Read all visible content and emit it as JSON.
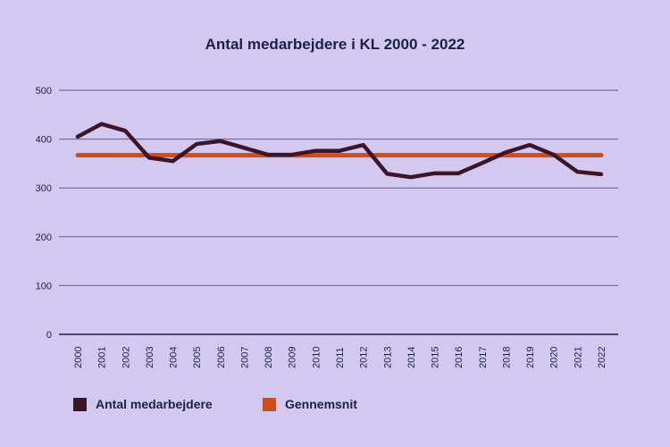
{
  "chart_data": {
    "type": "line",
    "title": "Antal medarbejdere i KL 2000 - 2022",
    "xlabel": "",
    "ylabel": "",
    "ylim": [
      0,
      500
    ],
    "yticks": [
      "0",
      "100",
      "200",
      "300",
      "400",
      "500"
    ],
    "grid": true,
    "legend_position": "bottom-left",
    "categories": [
      "2000",
      "2001",
      "2002",
      "2003",
      "2004",
      "2005",
      "2006",
      "2007",
      "2008",
      "2009",
      "2010",
      "2011",
      "2012",
      "2013",
      "2014",
      "2015",
      "2016",
      "2017",
      "2018",
      "2019",
      "2020",
      "2021",
      "2022"
    ],
    "series": [
      {
        "name": "Antal medarbejdere",
        "color": "#3e1528",
        "values": [
          405,
          431,
          417,
          362,
          355,
          390,
          396,
          382,
          368,
          368,
          376,
          376,
          388,
          329,
          322,
          330,
          330,
          351,
          373,
          388,
          368,
          333,
          328
        ]
      },
      {
        "name": "Gennemsnit",
        "color": "#cc4e1b",
        "values": [
          367,
          367,
          367,
          367,
          367,
          367,
          367,
          367,
          367,
          367,
          367,
          367,
          367,
          367,
          367,
          367,
          367,
          367,
          367,
          367,
          367,
          367,
          367
        ]
      }
    ]
  }
}
